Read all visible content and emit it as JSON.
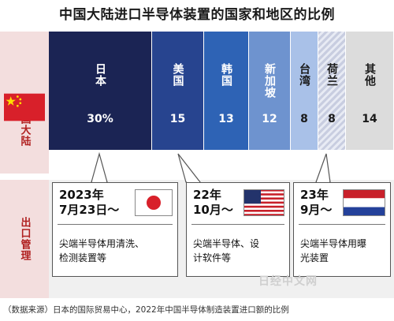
{
  "title": "中国大陆进口半导体装置的国家和地区的比例",
  "rows": {
    "top_label": "中国大陆",
    "bottom_label": "出口管理"
  },
  "colors": {
    "japan": "#1b2454",
    "usa": "#27448f",
    "korea": "#2e63b5",
    "singapore": "#6e93cf",
    "taiwan": "#a9c1e8",
    "netherlands_hatch": "#c8cde0",
    "others": "#dcdcdc",
    "china_red": "#d8202a",
    "row_label_bg": "#f3dede",
    "row_label_text": "#b02020"
  },
  "chart_data": {
    "type": "bar",
    "orientation": "horizontal-stacked",
    "unit": "%",
    "title": "中国大陆进口半导体装置的国家和地区的比例",
    "categories": [
      "日本",
      "美国",
      "韩国",
      "新加坡",
      "台湾",
      "荷兰",
      "其他"
    ],
    "values": [
      30,
      15,
      13,
      12,
      8,
      8,
      14
    ],
    "value_labels": [
      "30%",
      "15",
      "13",
      "12",
      "8",
      "8",
      "14"
    ]
  },
  "export_controls": [
    {
      "date": "2023年\n7月23日～",
      "desc": "尖端半导体用清洗、\n检测装置等",
      "flag": "japan-flag-icon"
    },
    {
      "date": "22年\n10月～",
      "desc": "尖端半导体、设\n计软件等",
      "flag": "usa-flag-icon"
    },
    {
      "date": "23年\n9月～",
      "desc": "尖端半导体用曝\n光装置",
      "flag": "netherlands-flag-icon"
    }
  ],
  "source": "（数据来源）日本的国际贸易中心，2022年中国半导体制造装置进口额的比例",
  "watermark": "日经中文网"
}
